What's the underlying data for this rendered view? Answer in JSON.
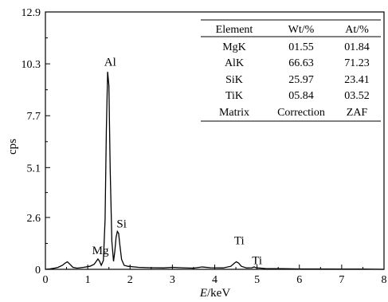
{
  "chart_data": {
    "type": "line",
    "xlabel_italic": "E",
    "xlabel_unit": "/keV",
    "ylabel": "cps",
    "xlim": [
      0,
      8
    ],
    "ylim": [
      0,
      12.9
    ],
    "xticks": [
      0,
      1,
      2,
      3,
      4,
      5,
      6,
      7,
      8
    ],
    "yticks": [
      {
        "value": 0,
        "label": "0"
      },
      {
        "value": 2.6,
        "label": "2.6"
      },
      {
        "value": 5.1,
        "label": "5.1"
      },
      {
        "value": 7.7,
        "label": "7.7"
      },
      {
        "value": 10.3,
        "label": "10.3"
      },
      {
        "value": 12.9,
        "label": "12.9"
      }
    ],
    "spectrum": [
      [
        0.0,
        0.0
      ],
      [
        0.1,
        0.02
      ],
      [
        0.2,
        0.05
      ],
      [
        0.3,
        0.1
      ],
      [
        0.4,
        0.2
      ],
      [
        0.47,
        0.32
      ],
      [
        0.52,
        0.38
      ],
      [
        0.58,
        0.25
      ],
      [
        0.65,
        0.1
      ],
      [
        0.75,
        0.06
      ],
      [
        0.9,
        0.1
      ],
      [
        1.05,
        0.15
      ],
      [
        1.15,
        0.25
      ],
      [
        1.2,
        0.4
      ],
      [
        1.24,
        0.52
      ],
      [
        1.28,
        0.4
      ],
      [
        1.32,
        0.2
      ],
      [
        1.37,
        0.45
      ],
      [
        1.41,
        2.5
      ],
      [
        1.44,
        7.0
      ],
      [
        1.47,
        9.9
      ],
      [
        1.5,
        9.2
      ],
      [
        1.53,
        5.0
      ],
      [
        1.57,
        1.4
      ],
      [
        1.61,
        0.4
      ],
      [
        1.64,
        0.9
      ],
      [
        1.67,
        1.6
      ],
      [
        1.7,
        1.9
      ],
      [
        1.73,
        1.8
      ],
      [
        1.76,
        1.2
      ],
      [
        1.8,
        0.5
      ],
      [
        1.86,
        0.2
      ],
      [
        1.95,
        0.15
      ],
      [
        2.2,
        0.1
      ],
      [
        2.5,
        0.08
      ],
      [
        2.8,
        0.07
      ],
      [
        3.0,
        0.1
      ],
      [
        3.2,
        0.08
      ],
      [
        3.5,
        0.06
      ],
      [
        3.7,
        0.12
      ],
      [
        3.9,
        0.08
      ],
      [
        4.2,
        0.07
      ],
      [
        4.38,
        0.15
      ],
      [
        4.46,
        0.3
      ],
      [
        4.51,
        0.38
      ],
      [
        4.56,
        0.32
      ],
      [
        4.63,
        0.15
      ],
      [
        4.75,
        0.07
      ],
      [
        4.88,
        0.08
      ],
      [
        4.93,
        0.12
      ],
      [
        4.98,
        0.08
      ],
      [
        5.2,
        0.04
      ],
      [
        5.6,
        0.03
      ],
      [
        6.0,
        0.02
      ],
      [
        6.4,
        0.02
      ],
      [
        7.0,
        0.01
      ],
      [
        7.5,
        0.01
      ],
      [
        8.0,
        0.0
      ]
    ],
    "peak_labels": [
      {
        "text": "Al",
        "x": 1.53,
        "y": 10.2
      },
      {
        "text": "Mg",
        "x": 1.3,
        "y": 0.75
      },
      {
        "text": "Si",
        "x": 1.8,
        "y": 2.1
      },
      {
        "text": "Ti",
        "x": 4.58,
        "y": 1.25
      },
      {
        "text": "Ti",
        "x": 5.0,
        "y": 0.25
      }
    ]
  },
  "table": {
    "headers": [
      "Element",
      "Wt/%",
      "At/%"
    ],
    "rows": [
      [
        "MgK",
        "01.55",
        "01.84"
      ],
      [
        "AlK",
        "66.63",
        "71.23"
      ],
      [
        "SiK",
        "25.97",
        "23.41"
      ],
      [
        "TiK",
        "05.84",
        "03.52"
      ],
      [
        "Matrix",
        "Correction",
        "ZAF"
      ]
    ]
  }
}
